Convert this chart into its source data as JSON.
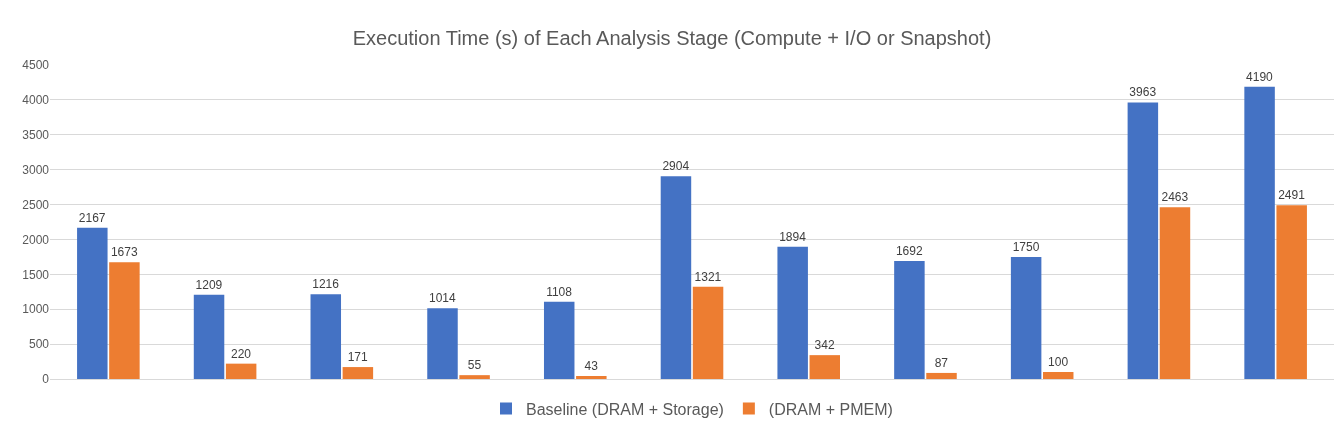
{
  "chart_data": {
    "type": "bar",
    "title": "Execution Time (s) of Each Analysis Stage (Compute + I/O or Snapshot)",
    "categories": [
      null,
      null,
      null,
      null,
      null,
      null,
      null,
      null,
      null,
      null,
      null
    ],
    "series": [
      {
        "name": "Baseline (DRAM + Storage)",
        "color": "#4472c4",
        "values": [
          2167,
          1209,
          1216,
          1014,
          1108,
          2904,
          1894,
          1692,
          1750,
          3963,
          4190
        ]
      },
      {
        "name": "(DRAM + PMEM)",
        "color": "#ed7d31",
        "values": [
          1673,
          220,
          171,
          55,
          43,
          1321,
          342,
          87,
          100,
          2463,
          2491
        ]
      }
    ],
    "ylim": [
      0,
      4500
    ],
    "yticks": [
      0,
      500,
      1000,
      1500,
      2000,
      2500,
      3000,
      3500,
      4000,
      4500
    ],
    "grid": "y",
    "legend": "bottom",
    "data_labels": true,
    "tick_labels": "y"
  }
}
